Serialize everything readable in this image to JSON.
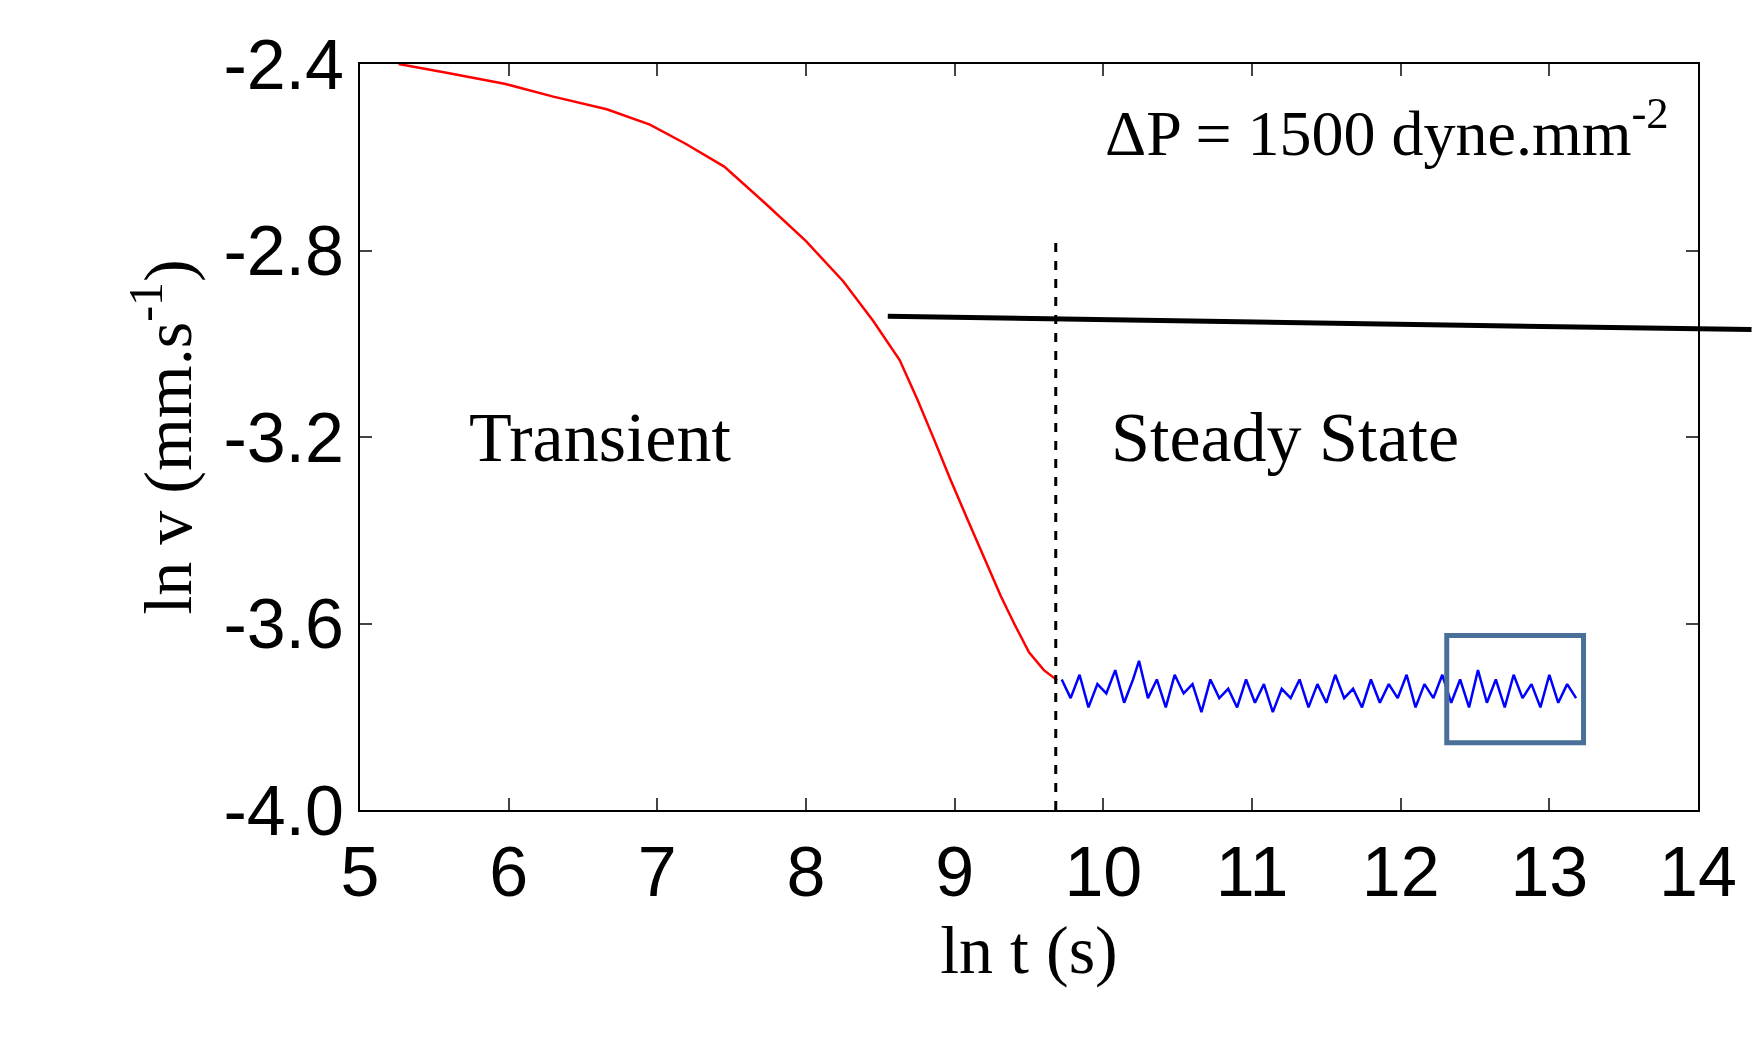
{
  "chart_data": {
    "type": "line",
    "xlabel": "ln t (s)",
    "ylabel": "ln v (mm.s$^{-1}$)",
    "xlim": [
      5,
      14
    ],
    "xticks": [
      5,
      6,
      7,
      8,
      9,
      10,
      11,
      12,
      13,
      14
    ],
    "ylim": [
      -4.0,
      -2.4
    ],
    "yticks": [
      {
        "value": -2.4,
        "label": "-2.4"
      },
      {
        "value": -2.8,
        "label": "-2.8"
      },
      {
        "value": -3.2,
        "label": "-3.2"
      },
      {
        "value": -3.6,
        "label": "-3.6"
      },
      {
        "value": -4.0,
        "label": "-4.0"
      }
    ],
    "series": [
      {
        "color": "#ff0000",
        "x": [
          5.26,
          5.6,
          5.98,
          6.3,
          6.66,
          6.95,
          7.19,
          7.45,
          7.72,
          8.0,
          8.25,
          8.45,
          8.63,
          8.75,
          8.86,
          8.97,
          9.08,
          9.2,
          9.31,
          9.4,
          9.5,
          9.6,
          9.69
        ],
        "values": [
          -2.4,
          -2.42,
          -2.443,
          -2.47,
          -2.497,
          -2.53,
          -2.571,
          -2.62,
          -2.697,
          -2.78,
          -2.866,
          -2.95,
          -3.035,
          -3.12,
          -3.204,
          -3.29,
          -3.372,
          -3.46,
          -3.541,
          -3.6,
          -3.662,
          -3.7,
          -3.722
        ]
      },
      {
        "color": "#0000ff",
        "x": [
          9.72,
          9.78,
          9.84,
          9.9,
          9.96,
          10.02,
          10.08,
          10.14,
          10.2,
          10.24,
          10.3,
          10.36,
          10.42,
          10.48,
          10.54,
          10.6,
          10.66,
          10.72,
          10.78,
          10.84,
          10.9,
          10.96,
          11.02,
          11.08,
          11.14,
          11.2,
          11.26,
          11.32,
          11.38,
          11.44,
          11.5,
          11.56,
          11.62,
          11.68,
          11.74,
          11.8,
          11.86,
          11.92,
          11.98,
          12.04,
          12.1,
          12.16,
          12.22,
          12.28,
          12.34,
          12.4,
          12.46,
          12.52,
          12.58,
          12.64,
          12.7,
          12.76,
          12.82,
          12.88,
          12.94,
          13.0,
          13.06,
          13.12,
          13.18
        ],
        "values": [
          -3.72,
          -3.76,
          -3.71,
          -3.78,
          -3.73,
          -3.75,
          -3.7,
          -3.77,
          -3.72,
          -3.68,
          -3.76,
          -3.72,
          -3.78,
          -3.71,
          -3.75,
          -3.73,
          -3.79,
          -3.72,
          -3.76,
          -3.74,
          -3.78,
          -3.72,
          -3.77,
          -3.73,
          -3.79,
          -3.74,
          -3.76,
          -3.72,
          -3.78,
          -3.73,
          -3.77,
          -3.71,
          -3.76,
          -3.74,
          -3.78,
          -3.72,
          -3.77,
          -3.73,
          -3.76,
          -3.71,
          -3.78,
          -3.73,
          -3.76,
          -3.71,
          -3.77,
          -3.72,
          -3.78,
          -3.7,
          -3.77,
          -3.72,
          -3.78,
          -3.71,
          -3.76,
          -3.73,
          -3.78,
          -3.71,
          -3.77,
          -3.73,
          -3.76
        ]
      },
      {
        "color": "#000000",
        "x": [
          8.55,
          14
        ],
        "values": [
          -2.941,
          -2.968
        ]
      }
    ],
    "ref_lines": [
      {
        "axis": "x",
        "value": 9.68,
        "color": "#000000",
        "line_style": "dashed"
      }
    ],
    "annotations": [
      "ΔP = 1500 dyne.mm$^{-2}$",
      "Transient",
      "Steady State"
    ]
  }
}
